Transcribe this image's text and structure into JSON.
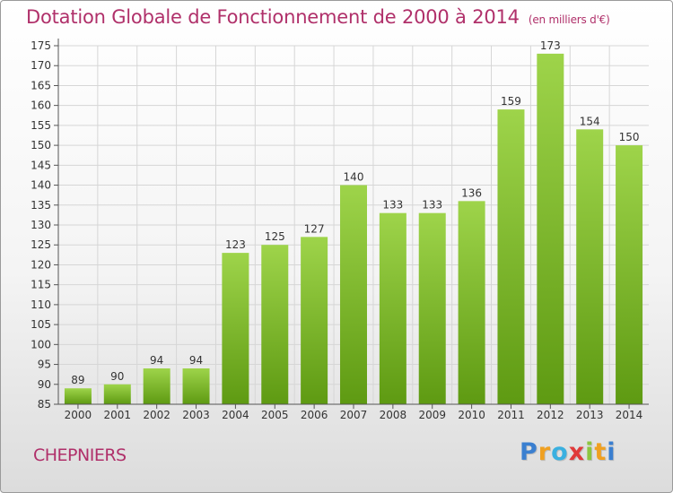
{
  "title": "Dotation Globale de Fonctionnement de 2000 à 2014",
  "subtitle": "(en milliers d'€)",
  "place": "CHEPNIERS",
  "logo": {
    "text": "Proxiti",
    "letters": [
      {
        "char": "P",
        "color": "#3a7fd0"
      },
      {
        "char": "r",
        "color": "#f0a020"
      },
      {
        "char": "o",
        "color": "#3ab0e0"
      },
      {
        "char": "x",
        "color": "#e03a3a"
      },
      {
        "char": "i",
        "color": "#8cc63f"
      },
      {
        "char": "t",
        "color": "#f0a020"
      },
      {
        "char": "i",
        "color": "#3a7fd0"
      }
    ]
  },
  "colors": {
    "title": "#b0306a",
    "bar_top": "#9ed44a",
    "bar_bottom": "#5e9a12",
    "grid": "#d6d6d6",
    "axis": "#555555"
  },
  "chart_data": {
    "type": "bar",
    "categories": [
      "2000",
      "2001",
      "2002",
      "2003",
      "2004",
      "2005",
      "2006",
      "2007",
      "2008",
      "2009",
      "2010",
      "2011",
      "2012",
      "2013",
      "2014"
    ],
    "values": [
      89,
      90,
      94,
      94,
      123,
      125,
      127,
      140,
      133,
      133,
      136,
      159,
      173,
      154,
      150
    ],
    "ylim": [
      85,
      175
    ],
    "yticks": [
      85,
      90,
      95,
      100,
      105,
      110,
      115,
      120,
      125,
      130,
      135,
      140,
      145,
      150,
      155,
      160,
      165,
      170,
      175
    ],
    "grid": true,
    "legend": "none"
  }
}
